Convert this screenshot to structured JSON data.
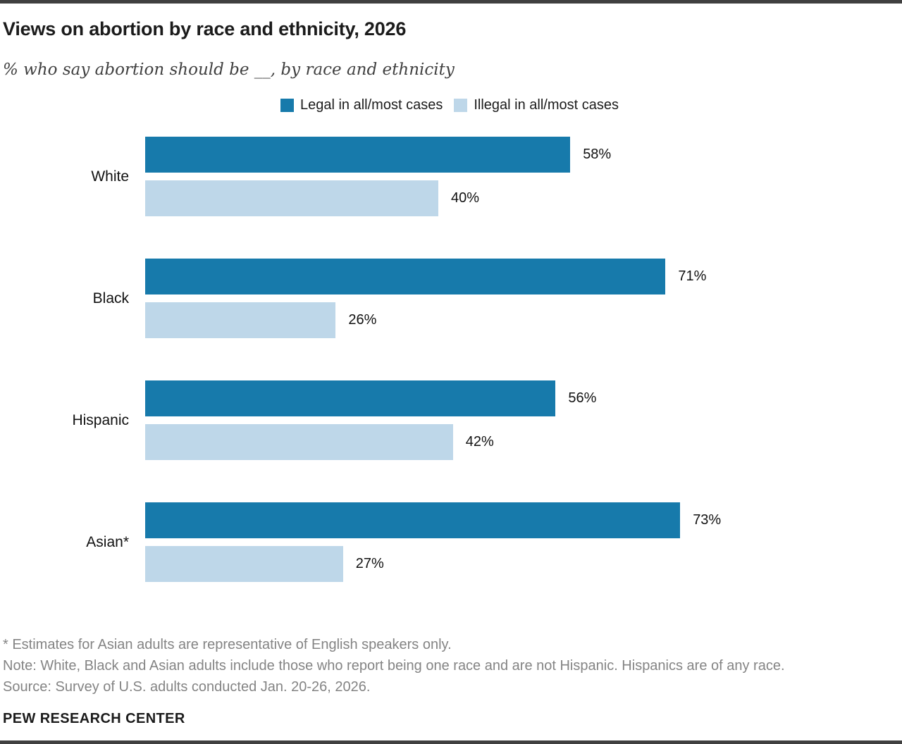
{
  "header": {
    "title": "Views on abortion by race and ethnicity, 2026",
    "subtitle": "% who say abortion should be __, by race and ethnicity"
  },
  "chart_data": {
    "type": "bar",
    "orientation": "horizontal",
    "title": "Views on abortion by race and ethnicity, 2026",
    "categories": [
      "White",
      "Black",
      "Hispanic",
      "Asian*"
    ],
    "series": [
      {
        "name": "Legal in all/most cases",
        "color": "#177AAB",
        "values": [
          58,
          71,
          56,
          73
        ]
      },
      {
        "name": "Illegal in all/most cases",
        "color": "#BED7E9",
        "values": [
          40,
          26,
          42,
          27
        ]
      }
    ],
    "value_suffix": "%",
    "xlim": [
      0,
      100
    ],
    "legend_position": "top-center",
    "grid": false,
    "axis_ticks": "none",
    "data_labels": "outside-end"
  },
  "footer": {
    "footnote": "* Estimates for Asian adults are representative of English speakers only.",
    "note": "Note: White, Black and Asian adults include those who report being one race and are not Hispanic. Hispanics are of any race.",
    "source": "Source: Survey of U.S. adults conducted Jan. 20-26, 2026.",
    "brand": "PEW RESEARCH CENTER"
  },
  "colors": {
    "legal_bar": "#177AAB",
    "illegal_bar": "#BED7E9",
    "rule": "#404040",
    "note_text": "#848484"
  }
}
